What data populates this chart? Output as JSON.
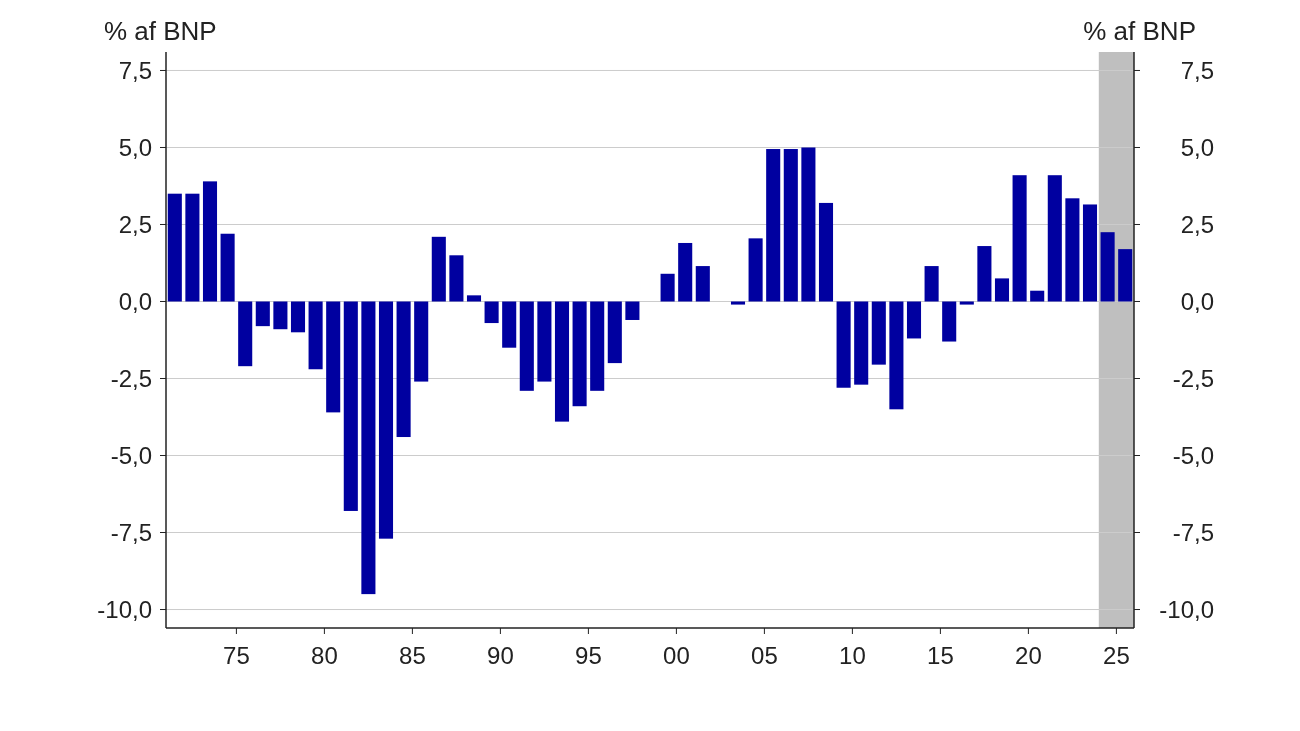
{
  "chart_data": {
    "type": "bar",
    "ylabel": "% af BNP",
    "y2label": "% af BNP",
    "x": [
      1971.5,
      1972.5,
      1973.5,
      1974.5,
      1975.5,
      1976.5,
      1977.5,
      1978.5,
      1979.5,
      1980.5,
      1981.5,
      1982.5,
      1983.5,
      1984.5,
      1985.5,
      1986.5,
      1987.5,
      1988.5,
      1989.5,
      1990.5,
      1991.5,
      1992.5,
      1993.5,
      1994.5,
      1995.5,
      1996.5,
      1997.5,
      1998.5,
      1999.5,
      2000.5,
      2001.5,
      2002.5,
      2003.5,
      2004.5,
      2005.5,
      2006.5,
      2007.5,
      2008.5,
      2009.5,
      2010.5,
      2011.5,
      2012.5,
      2013.5,
      2014.5,
      2015.5,
      2016.5,
      2017.5,
      2018.5,
      2019.5,
      2020.5,
      2021.5,
      2022.5,
      2023.5,
      2024.5,
      2025.5
    ],
    "series": [
      {
        "color": "#0000a0",
        "values": [
          3.5,
          3.5,
          3.9,
          2.2,
          -2.1,
          -0.8,
          -0.9,
          -1.0,
          -2.2,
          -3.6,
          -6.8,
          -9.5,
          -7.7,
          -4.4,
          -2.6,
          2.1,
          1.5,
          0.2,
          -0.7,
          -1.5,
          -2.9,
          -2.6,
          -3.9,
          -3.4,
          -2.9,
          -2.0,
          -0.6,
          0,
          0.9,
          1.9,
          1.15,
          0,
          -0.1,
          2.05,
          4.95,
          4.95,
          5.0,
          3.2,
          -2.8,
          -2.7,
          -2.05,
          -3.5,
          -1.2,
          1.15,
          -1.3,
          -0.1,
          1.8,
          0.75,
          4.1,
          0.35,
          4.1,
          3.35,
          3.15,
          2.25,
          1.7
        ]
      }
    ],
    "xlim": [
      1971,
      2026
    ],
    "xticks": [
      {
        "value": 1975,
        "label": "75"
      },
      {
        "value": 1980,
        "label": "80"
      },
      {
        "value": 1985,
        "label": "85"
      },
      {
        "value": 1990,
        "label": "90"
      },
      {
        "value": 1995,
        "label": "95"
      },
      {
        "value": 2000,
        "label": "00"
      },
      {
        "value": 2005,
        "label": "05"
      },
      {
        "value": 2010,
        "label": "10"
      },
      {
        "value": 2015,
        "label": "15"
      },
      {
        "value": 2020,
        "label": "20"
      },
      {
        "value": 2025,
        "label": "25"
      }
    ],
    "ylim": [
      -10.6,
      8.1
    ],
    "yticks": [
      {
        "value": -10,
        "label": "-10,0"
      },
      {
        "value": -7.5,
        "label": "-7,5"
      },
      {
        "value": -5,
        "label": "-5,0"
      },
      {
        "value": -2.5,
        "label": "-2,5"
      },
      {
        "value": 0,
        "label": "0,0"
      },
      {
        "value": 2.5,
        "label": "2,5"
      },
      {
        "value": 5,
        "label": "5,0"
      },
      {
        "value": 7.5,
        "label": "7,5"
      }
    ],
    "y2lim": [
      -10.6,
      8.1
    ],
    "y2ticks": [
      {
        "value": -10,
        "label": "-10,0"
      },
      {
        "value": -7.5,
        "label": "-7,5"
      },
      {
        "value": -5,
        "label": "-5,0"
      },
      {
        "value": -2.5,
        "label": "-2,5"
      },
      {
        "value": 0,
        "label": "0,0"
      },
      {
        "value": 2.5,
        "label": "2,5"
      },
      {
        "value": 5,
        "label": "5,0"
      },
      {
        "value": 7.5,
        "label": "7,5"
      }
    ],
    "bands": [
      {
        "axis": "x",
        "from": 2024,
        "to": 2026,
        "color": "#bfbfbf"
      }
    ],
    "grid": "y"
  }
}
